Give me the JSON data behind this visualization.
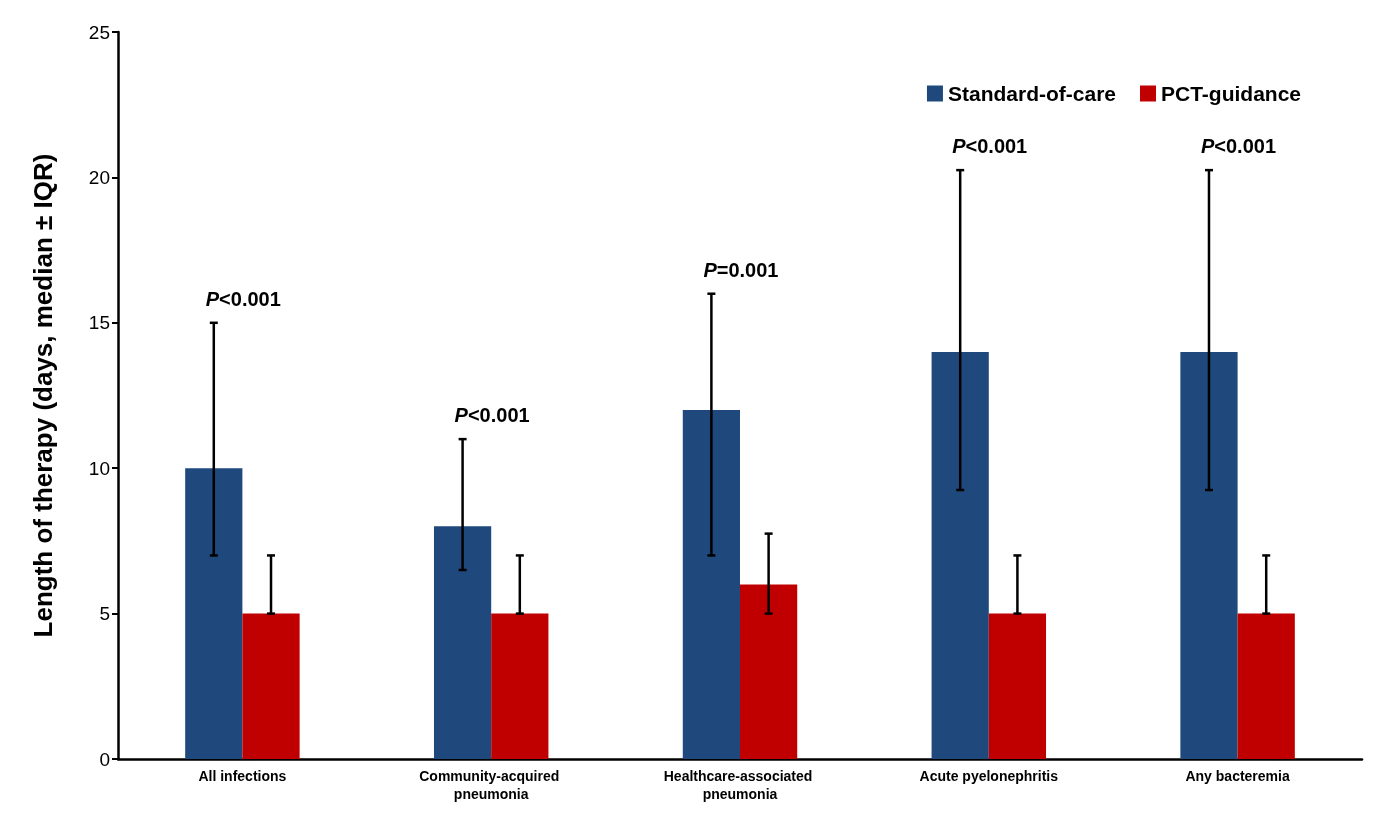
{
  "chart_data": {
    "type": "bar",
    "ylabel": "Length of therapy (days, median ± IQR)",
    "categories": [
      "All infections",
      "Community-acquired pneumonia",
      "Healthcare-associated pneumonia",
      "Acute pyelonephritis",
      "Any bacteremia"
    ],
    "series": [
      {
        "name": "Standard-of-care",
        "color": "#1f497d",
        "values": [
          10,
          8,
          12,
          14,
          14
        ],
        "errors": [
          [
            7,
            15
          ],
          [
            6.5,
            11
          ],
          [
            7,
            16
          ],
          [
            9.25,
            20.25
          ],
          [
            9.25,
            20.25
          ]
        ]
      },
      {
        "name": "PCT-guidance",
        "color": "#c00000",
        "values": [
          5,
          5,
          6,
          5,
          5
        ],
        "errors": [
          [
            5,
            7
          ],
          [
            5,
            7
          ],
          [
            5,
            7.75
          ],
          [
            5,
            7
          ],
          [
            5,
            7
          ]
        ]
      }
    ],
    "ylim": [
      0,
      25
    ],
    "yticks": [
      0,
      5,
      10,
      15,
      20,
      25
    ],
    "grid": false,
    "legend": "top right",
    "annotations": [
      "P<0.001",
      "P<0.001",
      "P=0.001",
      "P<0.001",
      "P<0.001"
    ]
  }
}
